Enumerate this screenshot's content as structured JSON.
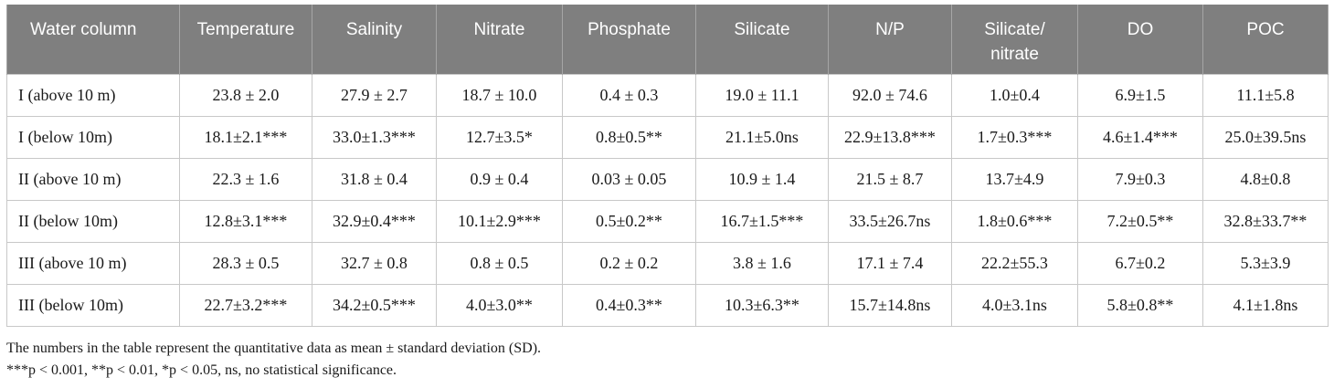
{
  "table": {
    "headers": [
      "Water column",
      "Temperature",
      "Salinity",
      "Nitrate",
      "Phosphate",
      "Silicate",
      "N/P",
      "Silicate/\nnitrate",
      "DO",
      "POC"
    ],
    "rows": [
      [
        "I (above 10 m)",
        "23.8 ± 2.0",
        "27.9 ± 2.7",
        "18.7 ± 10.0",
        "0.4 ± 0.3",
        "19.0 ± 11.1",
        "92.0 ± 74.6",
        "1.0±0.4",
        "6.9±1.5",
        "11.1±5.8"
      ],
      [
        "I (below 10m)",
        "18.1±2.1***",
        "33.0±1.3***",
        "12.7±3.5*",
        "0.8±0.5**",
        "21.1±5.0ns",
        "22.9±13.8***",
        "1.7±0.3***",
        "4.6±1.4***",
        "25.0±39.5ns"
      ],
      [
        "II (above 10 m)",
        "22.3 ± 1.6",
        "31.8 ± 0.4",
        "0.9 ± 0.4",
        "0.03 ± 0.05",
        "10.9 ± 1.4",
        "21.5 ± 8.7",
        "13.7±4.9",
        "7.9±0.3",
        "4.8±0.8"
      ],
      [
        "II (below 10m)",
        "12.8±3.1***",
        "32.9±0.4***",
        "10.1±2.9***",
        "0.5±0.2**",
        "16.7±1.5***",
        "33.5±26.7ns",
        "1.8±0.6***",
        "7.2±0.5**",
        "32.8±33.7**"
      ],
      [
        "III (above 10 m)",
        "28.3 ± 0.5",
        "32.7 ± 0.8",
        "0.8 ± 0.5",
        "0.2 ± 0.2",
        "3.8 ± 1.6",
        "17.1 ± 7.4",
        "22.2±55.3",
        "6.7±0.2",
        "5.3±3.9"
      ],
      [
        "III (below 10m)",
        "22.7±3.2***",
        "34.2±0.5***",
        "4.0±3.0**",
        "0.4±0.3**",
        "10.3±6.3**",
        "15.7±14.8ns",
        "4.0±3.1ns",
        "5.8±0.8**",
        "4.1±1.8ns"
      ]
    ]
  },
  "footnotes": [
    "The numbers in the table represent the quantitative data as mean ± standard deviation (SD).",
    "***p < 0.001, **p < 0.01, *p < 0.05, ns, no statistical significance."
  ]
}
